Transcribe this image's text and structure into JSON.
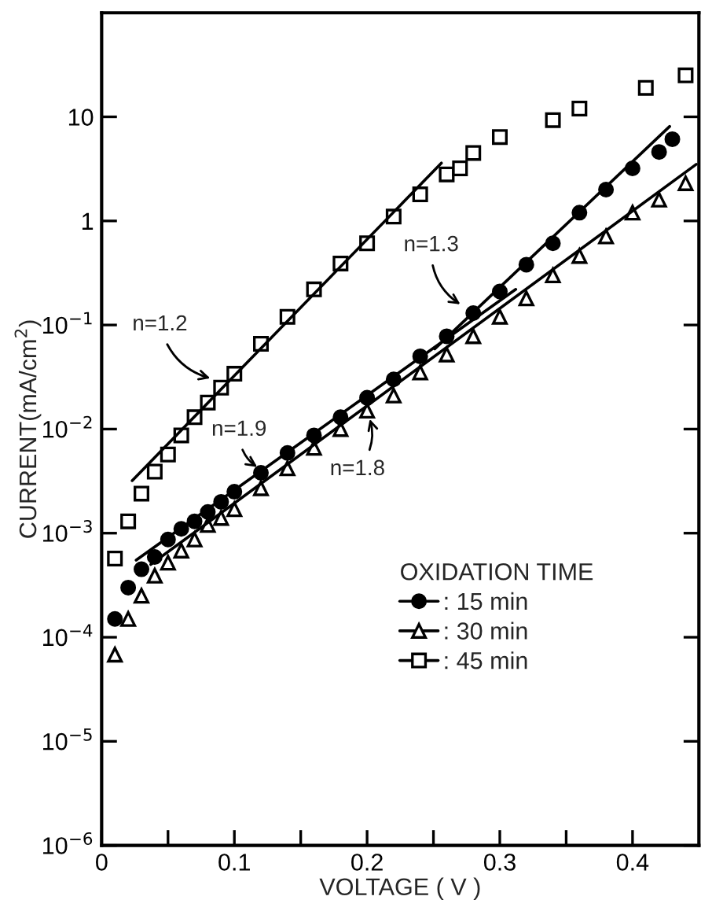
{
  "chart_data": {
    "type": "scatter",
    "xlabel": "VOLTAGE ( V )",
    "ylabel": "CURRENT(mA/cm$^{2}$)",
    "legend_title": "OXIDATION TIME",
    "legend": "bottom right",
    "log": "y",
    "grid": false,
    "xlim": [
      0,
      0.45
    ],
    "ylim": [
      1e-06,
      100
    ],
    "xticks": [
      0,
      0.1,
      0.2,
      0.3,
      0.4,
      {
        "value": 0.05,
        "label": null
      },
      {
        "value": 0.15,
        "label": null
      },
      {
        "value": 0.25,
        "label": null
      },
      {
        "value": 0.35,
        "label": null
      }
    ],
    "yticks": [
      {
        "value": 1e-06,
        "label": "10$^{−6}$"
      },
      {
        "value": 1e-05,
        "label": "10$^{−5}$"
      },
      {
        "value": 0.0001,
        "label": "10$^{−4}$"
      },
      {
        "value": 0.001,
        "label": "10$^{−3}$"
      },
      {
        "value": 0.01,
        "label": "10$^{−2}$"
      },
      {
        "value": 0.1,
        "label": "10$^{−1}$"
      },
      {
        "value": 1,
        "label": "1"
      },
      {
        "value": 10,
        "label": "10"
      }
    ],
    "series": [
      {
        "name": ": 15 min",
        "marker": "circle",
        "color": "#000000",
        "x": [
          0.01,
          0.02,
          0.03,
          0.04,
          0.05,
          0.06,
          0.07,
          0.08,
          0.09,
          0.1,
          0.12,
          0.14,
          0.16,
          0.18,
          0.2,
          0.22,
          0.24,
          0.26,
          0.28,
          0.3,
          0.32,
          0.34,
          0.36,
          0.38,
          0.4,
          0.42,
          0.43
        ],
        "values": [
          0.00015,
          0.0003,
          0.00045,
          0.00059,
          0.00087,
          0.0011,
          0.0013,
          0.0016,
          0.002,
          0.0025,
          0.0038,
          0.0059,
          0.0087,
          0.013,
          0.02,
          0.03,
          0.05,
          0.078,
          0.13,
          0.21,
          0.38,
          0.61,
          1.2,
          2.0,
          3.2,
          4.6,
          6.1
        ]
      },
      {
        "name": ": 30 min",
        "marker": "triangle",
        "color": "#000000",
        "x": [
          0.01,
          0.02,
          0.03,
          0.04,
          0.05,
          0.06,
          0.07,
          0.08,
          0.09,
          0.1,
          0.12,
          0.14,
          0.16,
          0.18,
          0.2,
          0.22,
          0.24,
          0.26,
          0.28,
          0.3,
          0.32,
          0.34,
          0.36,
          0.38,
          0.4,
          0.42,
          0.44
        ],
        "values": [
          6.8e-05,
          0.00015,
          0.00025,
          0.00039,
          0.00052,
          0.00068,
          0.00087,
          0.0012,
          0.0014,
          0.0017,
          0.0027,
          0.0042,
          0.0066,
          0.01,
          0.015,
          0.021,
          0.035,
          0.052,
          0.078,
          0.12,
          0.18,
          0.3,
          0.46,
          0.71,
          1.2,
          1.6,
          2.3
        ]
      },
      {
        "name": ": 45 min",
        "marker": "square",
        "color": "#000000",
        "x": [
          0.01,
          0.02,
          0.03,
          0.04,
          0.05,
          0.06,
          0.07,
          0.08,
          0.09,
          0.1,
          0.12,
          0.14,
          0.16,
          0.18,
          0.2,
          0.22,
          0.24,
          0.26,
          0.27,
          0.28,
          0.3,
          0.34,
          0.36,
          0.41,
          0.44
        ],
        "values": [
          0.00057,
          0.0013,
          0.0024,
          0.0039,
          0.0057,
          0.0087,
          0.013,
          0.018,
          0.025,
          0.034,
          0.066,
          0.12,
          0.22,
          0.39,
          0.61,
          1.1,
          1.8,
          2.8,
          3.2,
          4.5,
          6.4,
          9.3,
          12,
          19,
          25
        ]
      },
      {
        "type": "line",
        "color": "#000000",
        "x": [
          0.023,
          0.256
        ],
        "values": [
          0.0032,
          3.6
        ]
      },
      {
        "type": "line",
        "color": "#000000",
        "x": [
          0.026,
          0.312
        ],
        "values": [
          0.00055,
          0.22
        ]
      },
      {
        "type": "line",
        "color": "#000000",
        "x": [
          0.251,
          0.428
        ],
        "values": [
          0.059,
          8.1
        ]
      },
      {
        "type": "line",
        "color": "#000000",
        "x": [
          0.037,
          0.448
        ],
        "values": [
          0.0005,
          3.5
        ]
      }
    ],
    "annotations": [
      {
        "text": "n=1.2",
        "x": 0.085,
        "y": 0.03
      },
      {
        "text": "n=1.9",
        "x": 0.12,
        "y": 0.0041
      },
      {
        "text": "n=1.8",
        "x": 0.201,
        "y": 0.0137
      },
      {
        "text": "n=1.3",
        "x": 0.273,
        "y": 0.15
      }
    ]
  }
}
